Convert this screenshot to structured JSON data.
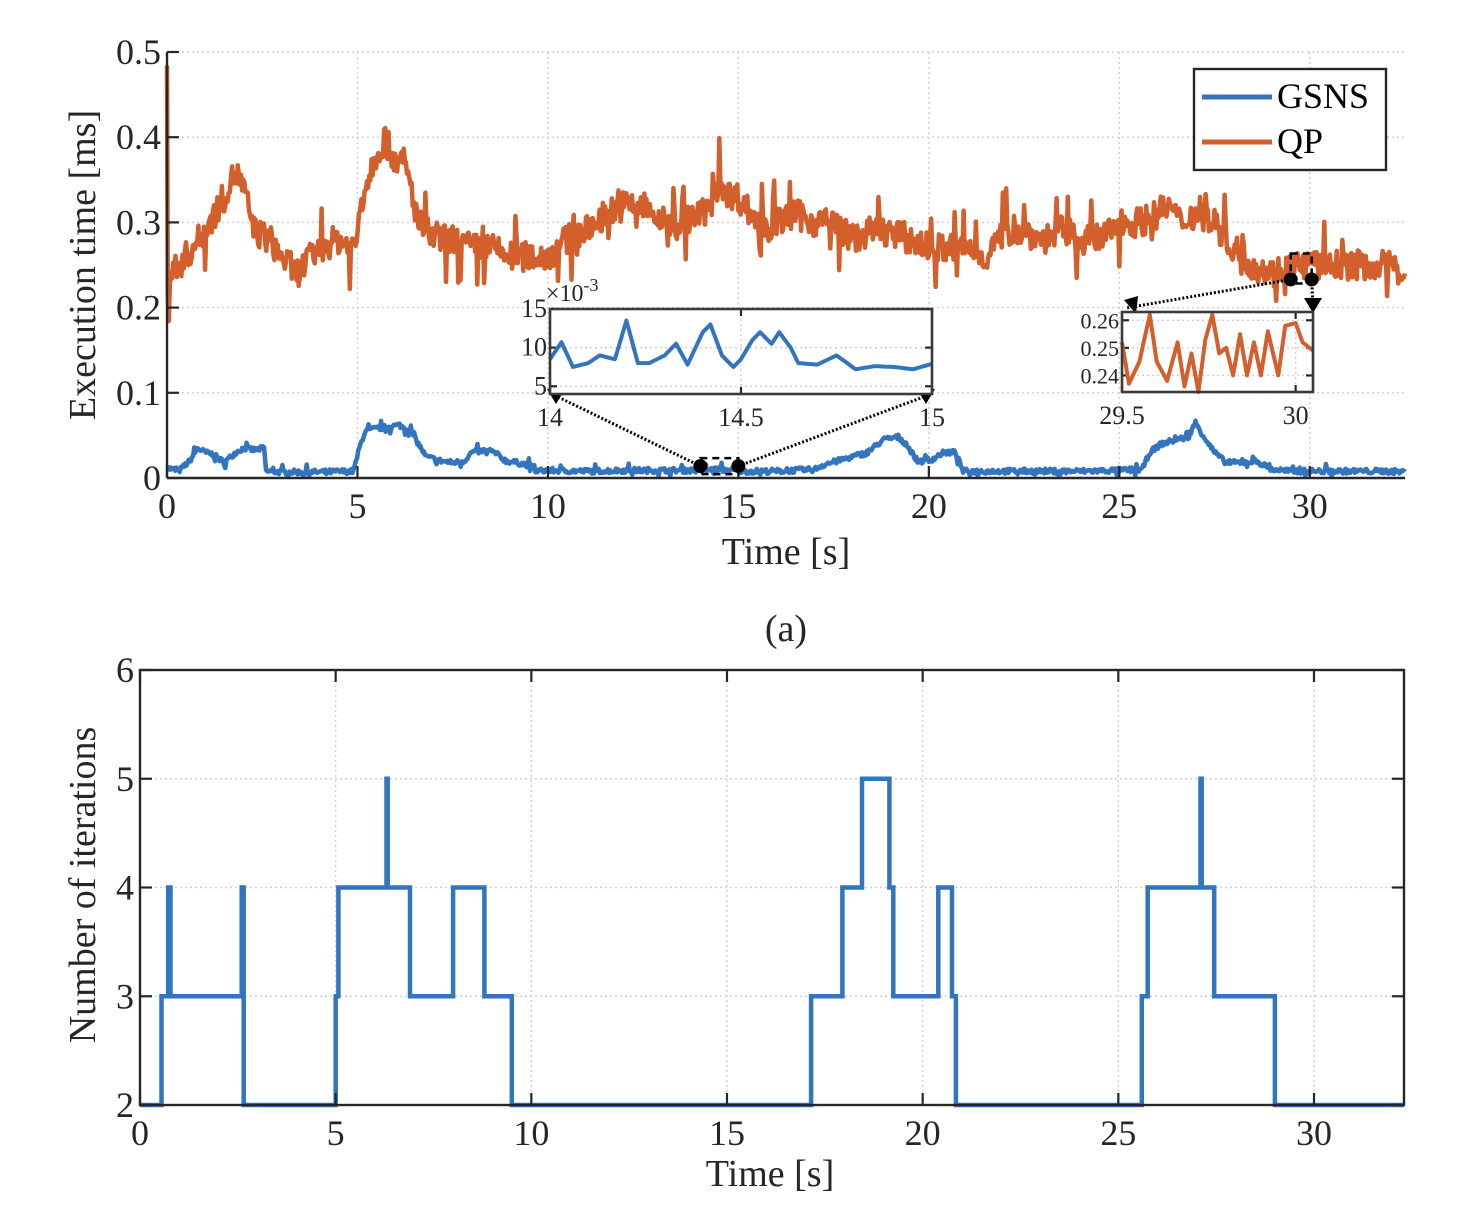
{
  "figure": {
    "subcaption_a": "(a)"
  },
  "chart_data": [
    {
      "id": "execution-time",
      "type": "line",
      "title": "",
      "xlabel": "Time [s]",
      "ylabel": "Execution time [ms]",
      "xlim": [
        0,
        32.5
      ],
      "ylim": [
        0,
        0.5
      ],
      "xticks": [
        0,
        5,
        10,
        15,
        20,
        25,
        30
      ],
      "xtick_labels": [
        "0",
        "5",
        "10",
        "15",
        "20",
        "25",
        "30"
      ],
      "yticks": [
        0,
        0.1,
        0.2,
        0.3,
        0.4,
        0.5
      ],
      "ytick_labels": [
        "0",
        "0.1",
        "0.2",
        "0.3",
        "0.4",
        "0.5"
      ],
      "grid": true,
      "legend": {
        "position": "top-right",
        "entries": [
          "GSNS",
          "QP"
        ]
      },
      "series": [
        {
          "name": "GSNS",
          "color": "#3274be",
          "x": [
            0,
            0.3,
            0.6,
            0.8,
            1.0,
            1.2,
            1.5,
            1.8,
            2.0,
            2.3,
            2.55,
            2.6,
            3.0,
            4.0,
            4.9,
            5.05,
            5.2,
            5.5,
            5.8,
            6.1,
            6.4,
            6.6,
            6.8,
            7.2,
            7.5,
            7.8,
            8.0,
            8.3,
            8.6,
            8.9,
            9.2,
            9.5,
            9.7,
            10.0,
            11.0,
            12.0,
            13.0,
            14.0,
            14.5,
            15.0,
            16.0,
            17.0,
            17.2,
            17.6,
            18.0,
            18.4,
            18.8,
            19.2,
            19.4,
            19.7,
            20.0,
            20.4,
            20.7,
            20.9,
            22.0,
            23.0,
            24.0,
            25.0,
            25.6,
            25.8,
            26.1,
            26.5,
            26.8,
            27.0,
            27.2,
            27.5,
            27.8,
            28.2,
            28.6,
            29.0,
            29.5,
            30.0,
            31.0,
            32.0,
            32.5
          ],
          "y": [
            0.012,
            0.008,
            0.02,
            0.035,
            0.03,
            0.028,
            0.018,
            0.03,
            0.035,
            0.033,
            0.035,
            0.008,
            0.007,
            0.007,
            0.008,
            0.035,
            0.055,
            0.058,
            0.06,
            0.062,
            0.055,
            0.04,
            0.025,
            0.02,
            0.018,
            0.02,
            0.03,
            0.032,
            0.03,
            0.02,
            0.018,
            0.015,
            0.008,
            0.009,
            0.008,
            0.009,
            0.009,
            0.009,
            0.01,
            0.008,
            0.008,
            0.01,
            0.015,
            0.02,
            0.025,
            0.03,
            0.045,
            0.048,
            0.04,
            0.02,
            0.02,
            0.03,
            0.03,
            0.008,
            0.008,
            0.008,
            0.008,
            0.009,
            0.01,
            0.03,
            0.04,
            0.045,
            0.048,
            0.065,
            0.05,
            0.03,
            0.018,
            0.018,
            0.02,
            0.01,
            0.008,
            0.008,
            0.008,
            0.008,
            0.007
          ]
        },
        {
          "name": "QP",
          "color": "#d35f2d",
          "x": [
            0,
            0.02,
            0.1,
            0.5,
            1.0,
            1.5,
            1.8,
            2.0,
            2.3,
            2.7,
            3.0,
            3.4,
            3.6,
            4.0,
            4.5,
            4.95,
            5.1,
            5.4,
            5.7,
            5.9,
            6.1,
            6.3,
            6.6,
            7.0,
            7.5,
            8.0,
            8.5,
            9.0,
            9.5,
            10.0,
            10.5,
            11.0,
            11.5,
            12.0,
            12.5,
            13.0,
            13.5,
            14.0,
            14.3,
            14.5,
            14.8,
            15.0,
            15.5,
            16.0,
            16.5,
            17.0,
            17.5,
            18.0,
            18.5,
            19.0,
            19.5,
            20.0,
            20.5,
            21.0,
            21.5,
            22.0,
            22.5,
            23.0,
            23.5,
            24.0,
            24.5,
            25.0,
            25.5,
            26.0,
            26.3,
            26.6,
            27.0,
            27.5,
            28.0,
            28.5,
            29.0,
            29.5,
            30.0,
            30.5,
            31.0,
            31.5,
            32.0,
            32.5
          ],
          "y": [
            0.5,
            0.22,
            0.24,
            0.26,
            0.29,
            0.33,
            0.36,
            0.34,
            0.29,
            0.28,
            0.26,
            0.24,
            0.25,
            0.27,
            0.28,
            0.27,
            0.33,
            0.37,
            0.4,
            0.38,
            0.37,
            0.36,
            0.3,
            0.28,
            0.28,
            0.27,
            0.27,
            0.26,
            0.26,
            0.26,
            0.28,
            0.29,
            0.31,
            0.32,
            0.32,
            0.3,
            0.3,
            0.31,
            0.32,
            0.35,
            0.33,
            0.33,
            0.3,
            0.3,
            0.31,
            0.3,
            0.3,
            0.28,
            0.29,
            0.29,
            0.28,
            0.27,
            0.27,
            0.27,
            0.26,
            0.29,
            0.29,
            0.28,
            0.29,
            0.28,
            0.28,
            0.3,
            0.3,
            0.31,
            0.32,
            0.3,
            0.31,
            0.3,
            0.27,
            0.25,
            0.24,
            0.25,
            0.25,
            0.25,
            0.25,
            0.25,
            0.25,
            0.24
          ]
        }
      ],
      "insets": [
        {
          "id": "inset-gsns",
          "series": "GSNS",
          "xlim": [
            14,
            15
          ],
          "ylim": [
            4,
            15
          ],
          "y_multiplier_label": "×10",
          "y_multiplier_exp": "-3",
          "xticks": [
            14,
            14.5,
            15
          ],
          "xtick_labels": [
            "14",
            "14.5",
            "15"
          ],
          "yticks": [
            5,
            10,
            15
          ],
          "ytick_labels": [
            "5",
            "10",
            "15"
          ],
          "x": [
            14,
            14.03,
            14.06,
            14.1,
            14.13,
            14.17,
            14.2,
            14.23,
            14.26,
            14.3,
            14.33,
            14.36,
            14.4,
            14.42,
            14.45,
            14.48,
            14.5,
            14.53,
            14.55,
            14.58,
            14.6,
            14.63,
            14.65,
            14.7,
            14.75,
            14.8,
            14.85,
            14.9,
            14.95,
            15.0
          ],
          "y": [
            8.5,
            10.7,
            7.5,
            8.0,
            9.0,
            8.5,
            13.5,
            8.0,
            8.0,
            9.0,
            10.5,
            7.8,
            12.0,
            13.0,
            9.0,
            7.5,
            8.5,
            11.0,
            12.0,
            10.5,
            12.0,
            10.0,
            8.0,
            7.8,
            9.0,
            7.2,
            7.6,
            7.5,
            7.2,
            7.9
          ]
        },
        {
          "id": "inset-qp",
          "series": "QP",
          "xlim": [
            29.5,
            30.05
          ],
          "ylim": [
            0.234,
            0.263
          ],
          "xticks": [
            29.5,
            30
          ],
          "xtick_labels": [
            "29.5",
            "30"
          ],
          "yticks": [
            0.24,
            0.25,
            0.26
          ],
          "ytick_labels": [
            "0.24",
            "0.25",
            "0.26"
          ],
          "x": [
            29.5,
            29.52,
            29.55,
            29.58,
            29.6,
            29.63,
            29.66,
            29.68,
            29.7,
            29.72,
            29.74,
            29.76,
            29.78,
            29.8,
            29.82,
            29.84,
            29.86,
            29.88,
            29.9,
            29.92,
            29.95,
            29.97,
            30.0,
            30.02,
            30.05
          ],
          "y": [
            0.252,
            0.237,
            0.245,
            0.262,
            0.245,
            0.238,
            0.252,
            0.236,
            0.248,
            0.234,
            0.253,
            0.262,
            0.248,
            0.25,
            0.24,
            0.255,
            0.24,
            0.252,
            0.24,
            0.256,
            0.24,
            0.258,
            0.259,
            0.252,
            0.249
          ]
        }
      ]
    },
    {
      "id": "iterations",
      "type": "line",
      "title": "",
      "xlabel": "Time [s]",
      "ylabel": "Number of iterations",
      "xlim": [
        0,
        32.3
      ],
      "ylim": [
        2,
        6
      ],
      "xticks": [
        0,
        5,
        10,
        15,
        20,
        25,
        30
      ],
      "xtick_labels": [
        "0",
        "5",
        "10",
        "15",
        "20",
        "25",
        "30"
      ],
      "yticks": [
        2,
        3,
        4,
        5,
        6
      ],
      "ytick_labels": [
        "2",
        "3",
        "4",
        "5",
        "6"
      ],
      "grid": true,
      "series": [
        {
          "name": "GSNS",
          "color": "#3274be",
          "step": true,
          "x": [
            0,
            0.55,
            0.72,
            0.78,
            2.6,
            2.65,
            5.0,
            5.07,
            6.3,
            6.33,
            6.9,
            8.0,
            8.8,
            9.5,
            17.15,
            17.95,
            18.45,
            19.15,
            19.25,
            20.4,
            20.75,
            20.85,
            25.6,
            25.75,
            27.1,
            27.13,
            27.45,
            29.0,
            32.3
          ],
          "y": [
            2,
            3,
            4,
            3,
            4,
            2,
            3,
            4,
            5,
            4,
            3,
            4,
            3,
            2,
            3,
            4,
            5,
            4,
            3,
            4,
            3,
            2,
            3,
            4,
            5,
            4,
            3,
            2,
            2
          ]
        }
      ]
    }
  ]
}
